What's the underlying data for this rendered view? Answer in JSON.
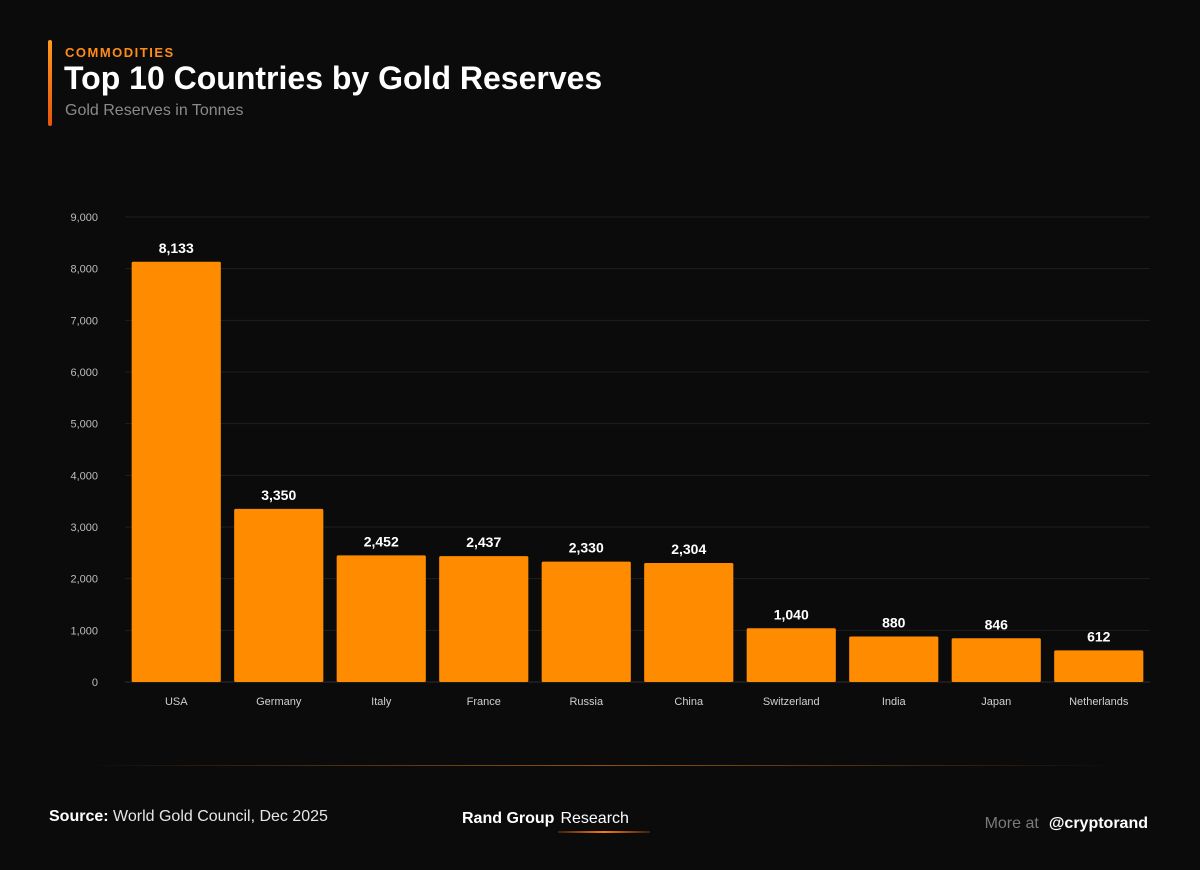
{
  "header": {
    "kicker": "COMMODITIES",
    "title": "Top 10 Countries by Gold Reserves",
    "subtitle": "Gold Reserves in Tonnes"
  },
  "footer": {
    "source_label": "Source:",
    "source_text": "World Gold Council, Dec 2025",
    "brand_name": "Rand Group",
    "brand_sub": "Research",
    "more_label": "More at",
    "handle": "@cryptorand"
  },
  "colors": {
    "bar": "#ff8c00",
    "accent": "#ff8c1a",
    "background": "#0b0b0c",
    "grid": "#1f1f22"
  },
  "chart_data": {
    "type": "bar",
    "title": "Top 10 Countries by Gold Reserves",
    "subtitle": "Gold Reserves in Tonnes",
    "xlabel": "",
    "ylabel": "",
    "categories": [
      "USA",
      "Germany",
      "Italy",
      "France",
      "Russia",
      "China",
      "Switzerland",
      "India",
      "Japan",
      "Netherlands"
    ],
    "values": [
      8133,
      3350,
      2452,
      2437,
      2330,
      2304,
      1040,
      880,
      846,
      612
    ],
    "value_labels": [
      "8,133",
      "3,350",
      "2,452",
      "2,437",
      "2,330",
      "2,304",
      "1,040",
      "880",
      "846",
      "612"
    ],
    "ylim": [
      0,
      9000
    ],
    "yticks": [
      0,
      1000,
      2000,
      3000,
      4000,
      5000,
      6000,
      7000,
      8000,
      9000
    ],
    "ytick_labels": [
      "0",
      "1,000",
      "2,000",
      "3,000",
      "4,000",
      "5,000",
      "6,000",
      "7,000",
      "8,000",
      "9,000"
    ],
    "grid": true,
    "legend": "none"
  }
}
